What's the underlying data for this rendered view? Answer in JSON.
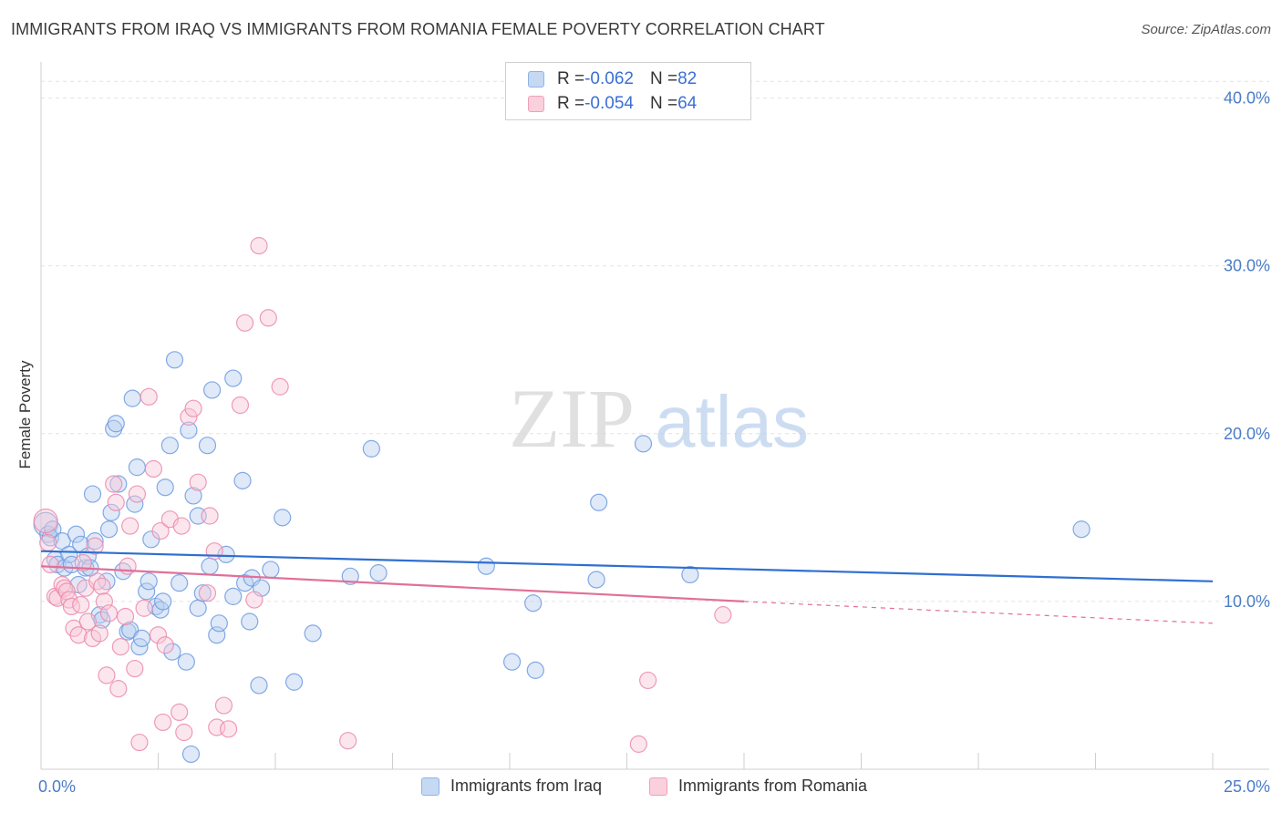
{
  "header": {
    "title": "IMMIGRANTS FROM IRAQ VS IMMIGRANTS FROM ROMANIA FEMALE POVERTY CORRELATION CHART",
    "source": "Source: ZipAtlas.com"
  },
  "watermark": {
    "zip": "ZIP",
    "atlas": "atlas"
  },
  "legend": {
    "rows": [
      {
        "r_label": "R = ",
        "r_value": "-0.062",
        "n_label": "N = ",
        "n_value": "82",
        "color": "#8fb3e8",
        "fill": "#c6d9f3"
      },
      {
        "r_label": "R = ",
        "r_value": "-0.054",
        "n_label": "N = ",
        "n_value": "64",
        "color": "#f0a0bb",
        "fill": "#fad0dd"
      }
    ]
  },
  "chart_data": {
    "type": "scatter",
    "title": "IMMIGRANTS FROM IRAQ VS IMMIGRANTS FROM ROMANIA FEMALE POVERTY CORRELATION CHART",
    "ylabel": "Female Poverty",
    "xlabel": "",
    "xlim": [
      0,
      25
    ],
    "ylim": [
      0,
      40
    ],
    "x_ticks": [
      "0.0%",
      "25.0%"
    ],
    "y_ticks": [
      {
        "value": 10,
        "label": "10.0%"
      },
      {
        "value": 20,
        "label": "20.0%"
      },
      {
        "value": 30,
        "label": "30.0%"
      },
      {
        "value": 40,
        "label": "40.0%"
      }
    ],
    "grid": true,
    "legend_position": "top-center",
    "series": [
      {
        "name": "Immigrants from Iraq",
        "color": "#6d9be0",
        "fill": "#b7cff0",
        "trend": {
          "x": [
            0,
            25
          ],
          "y": [
            13.0,
            11.2
          ]
        },
        "points": [
          [
            0.1,
            14.6
          ],
          [
            0.15,
            14.0
          ],
          [
            0.2,
            13.8
          ],
          [
            0.25,
            14.3
          ],
          [
            0.3,
            12.5
          ],
          [
            0.35,
            12.2
          ],
          [
            0.45,
            13.6
          ],
          [
            0.5,
            12.0
          ],
          [
            0.6,
            12.8
          ],
          [
            0.65,
            12.2
          ],
          [
            0.75,
            14.0
          ],
          [
            0.8,
            11.0
          ],
          [
            0.85,
            13.4
          ],
          [
            0.95,
            12.0
          ],
          [
            1.0,
            12.7
          ],
          [
            1.05,
            12.0
          ],
          [
            1.1,
            16.4
          ],
          [
            1.15,
            13.6
          ],
          [
            1.25,
            9.2
          ],
          [
            1.3,
            8.9
          ],
          [
            1.4,
            11.2
          ],
          [
            1.45,
            14.3
          ],
          [
            1.5,
            15.3
          ],
          [
            1.55,
            20.3
          ],
          [
            1.6,
            20.6
          ],
          [
            1.65,
            17.0
          ],
          [
            1.75,
            11.8
          ],
          [
            1.85,
            8.2
          ],
          [
            1.9,
            8.3
          ],
          [
            1.95,
            22.1
          ],
          [
            2.0,
            15.8
          ],
          [
            2.05,
            18.0
          ],
          [
            2.1,
            7.3
          ],
          [
            2.15,
            7.8
          ],
          [
            2.25,
            10.6
          ],
          [
            2.3,
            11.2
          ],
          [
            2.35,
            13.7
          ],
          [
            2.45,
            9.7
          ],
          [
            2.55,
            9.5
          ],
          [
            2.6,
            10.0
          ],
          [
            2.65,
            16.8
          ],
          [
            2.75,
            19.3
          ],
          [
            2.8,
            7.0
          ],
          [
            2.85,
            24.4
          ],
          [
            2.95,
            11.1
          ],
          [
            3.1,
            6.4
          ],
          [
            3.15,
            20.2
          ],
          [
            3.25,
            16.3
          ],
          [
            3.35,
            15.1
          ],
          [
            3.35,
            9.6
          ],
          [
            3.45,
            10.5
          ],
          [
            3.55,
            19.3
          ],
          [
            3.6,
            12.1
          ],
          [
            3.65,
            22.6
          ],
          [
            3.75,
            8.0
          ],
          [
            3.8,
            8.7
          ],
          [
            3.95,
            12.8
          ],
          [
            4.1,
            10.3
          ],
          [
            4.1,
            23.3
          ],
          [
            4.3,
            17.2
          ],
          [
            4.35,
            11.1
          ],
          [
            4.45,
            8.8
          ],
          [
            4.5,
            11.4
          ],
          [
            4.65,
            5.0
          ],
          [
            4.7,
            10.8
          ],
          [
            4.9,
            11.9
          ],
          [
            5.15,
            15.0
          ],
          [
            5.4,
            5.2
          ],
          [
            5.8,
            8.1
          ],
          [
            6.6,
            11.5
          ],
          [
            7.05,
            19.1
          ],
          [
            7.2,
            11.7
          ],
          [
            9.5,
            12.1
          ],
          [
            10.05,
            6.4
          ],
          [
            10.5,
            9.9
          ],
          [
            10.55,
            5.9
          ],
          [
            11.85,
            11.3
          ],
          [
            11.9,
            15.9
          ],
          [
            12.85,
            19.4
          ],
          [
            13.85,
            11.6
          ],
          [
            22.2,
            14.3
          ],
          [
            3.2,
            0.9
          ]
        ]
      },
      {
        "name": "Immigrants from Romania",
        "color": "#eb8aab",
        "fill": "#f8c8d8",
        "trend": {
          "x": [
            0,
            15
          ],
          "y": [
            12.1,
            10.0
          ]
        },
        "trend_ext": {
          "x": [
            15,
            25
          ],
          "y": [
            10.0,
            8.7
          ]
        },
        "points": [
          [
            0.1,
            14.8
          ],
          [
            0.15,
            13.5
          ],
          [
            0.2,
            12.2
          ],
          [
            0.3,
            10.3
          ],
          [
            0.35,
            10.2
          ],
          [
            0.45,
            11.0
          ],
          [
            0.5,
            10.8
          ],
          [
            0.55,
            10.6
          ],
          [
            0.6,
            10.1
          ],
          [
            0.65,
            9.7
          ],
          [
            0.7,
            8.4
          ],
          [
            0.8,
            8.0
          ],
          [
            0.85,
            9.8
          ],
          [
            0.9,
            12.3
          ],
          [
            0.95,
            10.8
          ],
          [
            1.0,
            8.8
          ],
          [
            1.1,
            7.8
          ],
          [
            1.15,
            13.3
          ],
          [
            1.2,
            11.2
          ],
          [
            1.25,
            8.1
          ],
          [
            1.3,
            10.9
          ],
          [
            1.35,
            10.0
          ],
          [
            1.4,
            5.6
          ],
          [
            1.45,
            9.3
          ],
          [
            1.55,
            17.0
          ],
          [
            1.6,
            15.9
          ],
          [
            1.65,
            4.8
          ],
          [
            1.7,
            7.3
          ],
          [
            1.8,
            9.1
          ],
          [
            1.85,
            12.1
          ],
          [
            1.9,
            14.5
          ],
          [
            2.0,
            6.0
          ],
          [
            2.05,
            16.4
          ],
          [
            2.1,
            1.6
          ],
          [
            2.2,
            9.6
          ],
          [
            2.3,
            22.2
          ],
          [
            2.4,
            17.9
          ],
          [
            2.5,
            8.0
          ],
          [
            2.55,
            14.2
          ],
          [
            2.6,
            2.8
          ],
          [
            2.65,
            7.4
          ],
          [
            2.75,
            14.9
          ],
          [
            2.95,
            3.4
          ],
          [
            3.0,
            14.5
          ],
          [
            3.05,
            2.2
          ],
          [
            3.15,
            21.0
          ],
          [
            3.25,
            21.5
          ],
          [
            3.35,
            17.1
          ],
          [
            3.55,
            10.5
          ],
          [
            3.6,
            15.1
          ],
          [
            3.7,
            13.0
          ],
          [
            3.75,
            2.5
          ],
          [
            3.9,
            3.8
          ],
          [
            4.0,
            2.4
          ],
          [
            4.25,
            21.7
          ],
          [
            4.35,
            26.6
          ],
          [
            4.55,
            10.1
          ],
          [
            4.65,
            31.2
          ],
          [
            4.85,
            26.9
          ],
          [
            5.1,
            22.8
          ],
          [
            6.55,
            1.7
          ],
          [
            12.75,
            1.5
          ],
          [
            12.95,
            5.3
          ],
          [
            14.55,
            9.2
          ]
        ]
      }
    ]
  },
  "bottom_legend": [
    {
      "label": "Immigrants from Iraq"
    },
    {
      "label": "Immigrants from Romania"
    }
  ]
}
